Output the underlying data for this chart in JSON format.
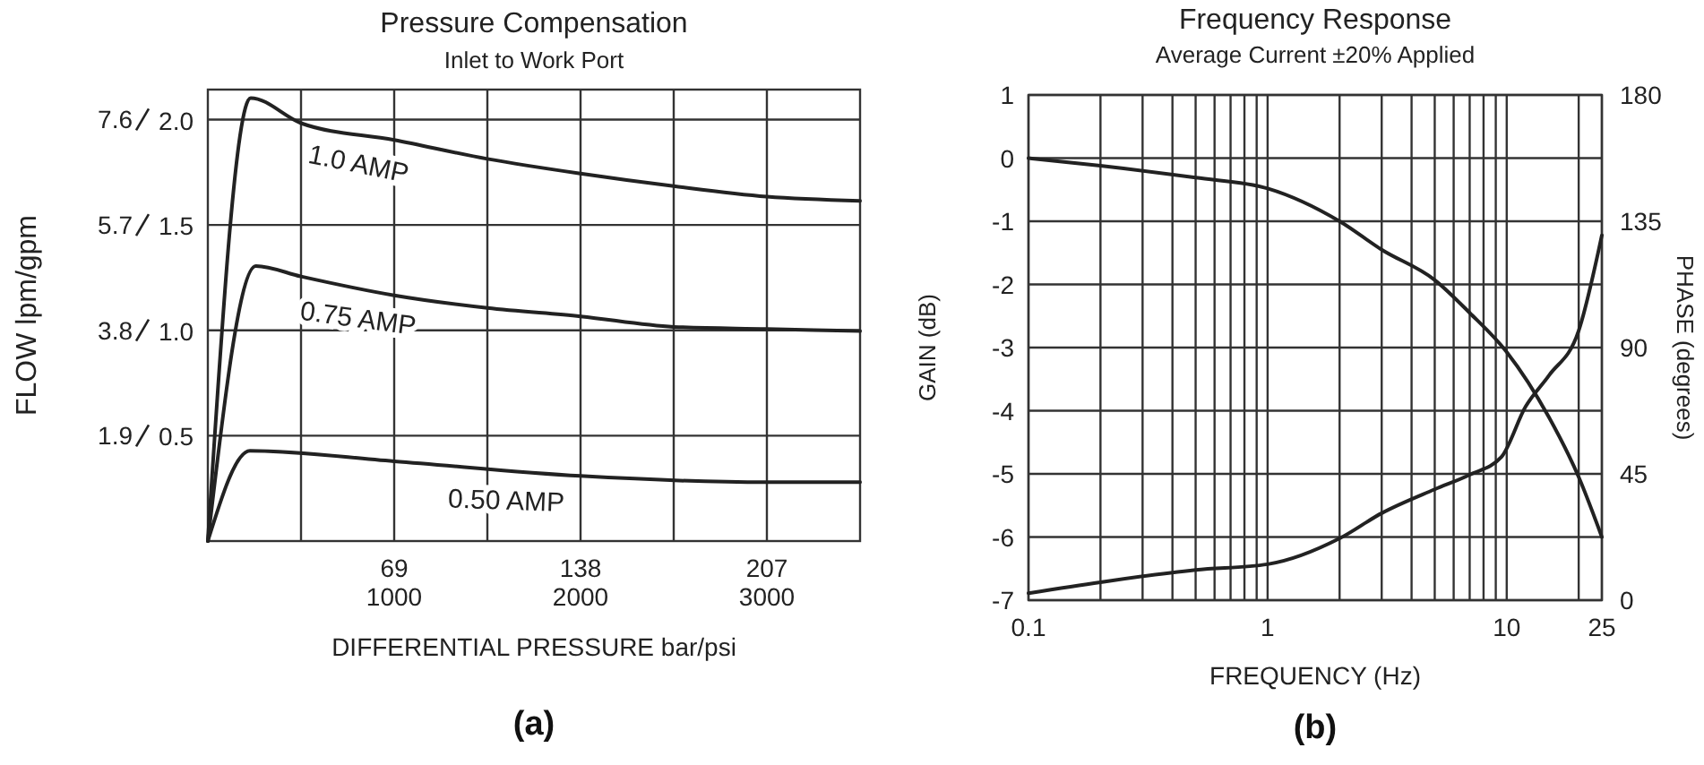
{
  "chart_data": [
    {
      "type": "line",
      "title": "Pressure Compensation",
      "subtitle": "Inlet to Work Port",
      "xlabel": "DIFFERENTIAL PRESSURE  bar/psi",
      "ylabel": "FLOW lpm/gpm",
      "annotations": [
        "(a)"
      ],
      "xlim": [
        0,
        3500
      ],
      "ylim": [
        0,
        8.14
      ],
      "x2lim": [
        0,
        241.5
      ],
      "y2lim": [
        0,
        2.15
      ],
      "xticks": [
        {
          "value": 500,
          "label": null
        },
        1000,
        {
          "value": 1500,
          "label": null
        },
        2000,
        {
          "value": 2500,
          "label": null
        },
        3000
      ],
      "x2ticks": [
        69,
        138,
        207
      ],
      "yticks": [
        1.9,
        3.8,
        5.7,
        7.6
      ],
      "y2ticks": [
        0.5,
        {
          "value": 1.0,
          "label": "1.0"
        },
        1.5,
        {
          "value": 2.0,
          "label": "2.0"
        }
      ],
      "grid": true,
      "series": [
        {
          "name": "1.0 AMP",
          "color": "#222222",
          "axis": "y2",
          "x": [
            0,
            230,
            500,
            1000,
            1500,
            2000,
            2500,
            3000,
            3500
          ],
          "values": [
            0,
            2.11,
            1.99,
            1.91,
            1.82,
            1.75,
            1.69,
            1.64,
            1.62
          ]
        },
        {
          "name": "0.75 AMP",
          "color": "#222222",
          "axis": "y2",
          "x": [
            0,
            258,
            500,
            1000,
            1500,
            2000,
            2500,
            3000,
            3500
          ],
          "values": [
            0,
            1.31,
            1.26,
            1.17,
            1.11,
            1.07,
            1.02,
            1.01,
            1.0
          ]
        },
        {
          "name": "0.50 AMP",
          "color": "#222222",
          "axis": "y2",
          "x": [
            0,
            226,
            1000,
            2000,
            3000,
            3500
          ],
          "values": [
            0,
            0.43,
            0.38,
            0.31,
            0.28,
            0.28
          ]
        }
      ]
    },
    {
      "type": "line",
      "title": "Frequency Response",
      "subtitle": "Average Current ±20% Applied",
      "xlabel": "FREQUENCY (Hz)",
      "ylabel": "GAIN (dB)",
      "y2label": "PHASE (degrees)",
      "annotations": [
        "(b)"
      ],
      "log": "x",
      "xlim": [
        0.1,
        25
      ],
      "ylim": [
        -7,
        1
      ],
      "y2lim": [
        0,
        180
      ],
      "xticks": [
        0.1,
        {
          "value": 0.2,
          "label": null
        },
        {
          "value": 0.3,
          "label": null
        },
        {
          "value": 0.4,
          "label": null
        },
        {
          "value": 0.5,
          "label": null
        },
        {
          "value": 0.6,
          "label": null
        },
        {
          "value": 0.7,
          "label": null
        },
        {
          "value": 0.8,
          "label": null
        },
        {
          "value": 0.9,
          "label": null
        },
        1,
        {
          "value": 2,
          "label": null
        },
        {
          "value": 3,
          "label": null
        },
        {
          "value": 4,
          "label": null
        },
        {
          "value": 5,
          "label": null
        },
        {
          "value": 6,
          "label": null
        },
        {
          "value": 7,
          "label": null
        },
        {
          "value": 8,
          "label": null
        },
        {
          "value": 9,
          "label": null
        },
        10,
        {
          "value": 20,
          "label": null
        },
        25
      ],
      "yticks": [
        -7,
        -6,
        -5,
        -4,
        -3,
        -2,
        -1,
        0,
        1
      ],
      "y2ticks": [
        0,
        45,
        90,
        135,
        180
      ],
      "grid": true,
      "series": [
        {
          "color": "#222222",
          "x": [
            0.1,
            0.2,
            0.5,
            1,
            2,
            3,
            5,
            7,
            10,
            15,
            20,
            25
          ],
          "values": [
            0,
            -0.12,
            -0.31,
            -0.48,
            -1.0,
            -1.45,
            -1.93,
            -2.45,
            -3.07,
            -4.1,
            -5.05,
            -6.0
          ]
        },
        {
          "color": "#222222",
          "axis": "y2",
          "x": [
            0.1,
            0.2,
            0.5,
            1,
            2,
            3,
            5,
            7,
            9.5,
            12,
            15,
            20,
            25
          ],
          "values": [
            2.5,
            6.4,
            10.8,
            12.8,
            22,
            31,
            39.5,
            44.7,
            51,
            69,
            80,
            96,
            130
          ]
        }
      ]
    }
  ]
}
